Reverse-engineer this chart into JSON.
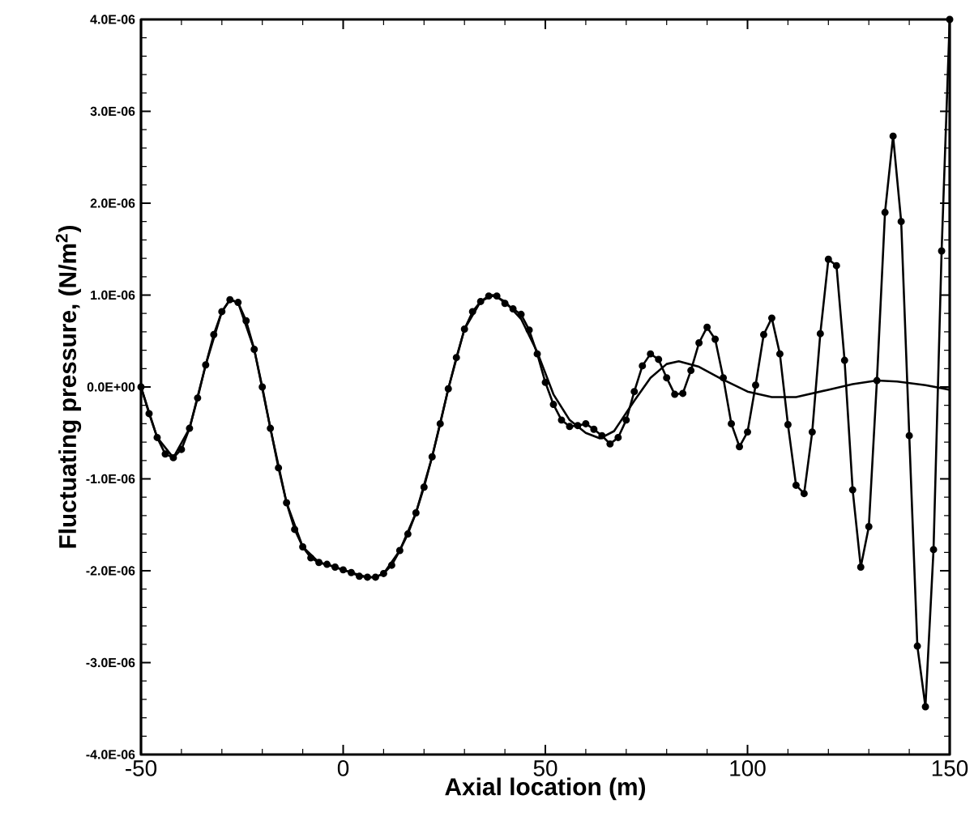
{
  "chart_data": {
    "type": "line",
    "xlabel": "Axial location (m)",
    "ylabel": "Fluctuating pressure, (N/m$^{2}$)",
    "xlim": [
      -50,
      150
    ],
    "xticks": [
      -50,
      0,
      50,
      100,
      150
    ],
    "ylim": [
      -4e-06,
      4e-06
    ],
    "yticks": [
      {
        "value": -4e-06,
        "label": "-4.0E-06"
      },
      {
        "value": -3e-06,
        "label": "-3.0E-06"
      },
      {
        "value": -2e-06,
        "label": "-2.0E-06"
      },
      {
        "value": -1e-06,
        "label": "-1.0E-06"
      },
      {
        "value": 0,
        "label": "0.0E+00"
      },
      {
        "value": 1e-06,
        "label": "1.0E-06"
      },
      {
        "value": 2e-06,
        "label": "2.0E-06"
      },
      {
        "value": 3e-06,
        "label": "3.0E-06"
      },
      {
        "value": 4e-06,
        "label": "4.0E-06"
      }
    ],
    "line_style": "solid",
    "series": [
      {
        "color": "#000000",
        "marker": "circle",
        "x": [
          -50,
          -48,
          -46,
          -44,
          -42,
          -40,
          -38,
          -36,
          -34,
          -32,
          -30,
          -28,
          -26,
          -24,
          -22,
          -20,
          -18,
          -16,
          -14,
          -12,
          -10,
          -8,
          -6,
          -4,
          -2,
          0,
          2,
          4,
          6,
          8,
          10,
          12,
          14,
          16,
          18,
          20,
          22,
          24,
          26,
          28,
          30,
          32,
          34,
          36,
          38,
          40,
          42,
          44,
          46,
          48,
          50,
          52,
          54,
          56,
          58,
          60,
          62,
          64,
          66,
          68,
          70,
          72,
          74,
          76,
          78,
          80,
          82,
          84,
          86,
          88,
          90,
          92,
          94,
          96,
          98,
          100,
          102,
          104,
          106,
          108,
          110,
          112,
          114,
          116,
          118,
          120,
          122,
          124,
          126,
          128,
          130,
          132,
          134,
          136,
          138,
          140,
          142,
          144,
          146,
          148,
          150
        ],
        "values": [
          0,
          -2.9e-07,
          -5.5e-07,
          -7.3e-07,
          -7.7e-07,
          -6.8e-07,
          -4.5e-07,
          -1.2e-07,
          2.4e-07,
          5.7e-07,
          8.2e-07,
          9.5e-07,
          9.2e-07,
          7.2e-07,
          4.1e-07,
          0,
          -4.5e-07,
          -8.8e-07,
          -1.26e-06,
          -1.55e-06,
          -1.74e-06,
          -1.86e-06,
          -1.91e-06,
          -1.93e-06,
          -1.96e-06,
          -1.99e-06,
          -2.02e-06,
          -2.06e-06,
          -2.07e-06,
          -2.07e-06,
          -2.03e-06,
          -1.94e-06,
          -1.78e-06,
          -1.6e-06,
          -1.37e-06,
          -1.09e-06,
          -7.6e-07,
          -4e-07,
          -2e-08,
          3.2e-07,
          6.3e-07,
          8.2e-07,
          9.3e-07,
          9.9e-07,
          9.9e-07,
          9.1e-07,
          8.5e-07,
          7.9e-07,
          6.2e-07,
          3.6e-07,
          5e-08,
          -1.9e-07,
          -3.6e-07,
          -4.3e-07,
          -4.2e-07,
          -4e-07,
          -4.6e-07,
          -5.3e-07,
          -6.2e-07,
          -5.5e-07,
          -3.6e-07,
          -5e-08,
          2.3e-07,
          3.6e-07,
          3e-07,
          1e-07,
          -8e-08,
          -7e-08,
          1.8e-07,
          4.8e-07,
          6.5e-07,
          5.2e-07,
          1e-07,
          -4e-07,
          -6.5e-07,
          -4.9e-07,
          2e-08,
          5.7e-07,
          7.5e-07,
          3.6e-07,
          -4.1e-07,
          -1.07e-06,
          -1.16e-06,
          -4.9e-07,
          5.8e-07,
          1.39e-06,
          1.32e-06,
          2.9e-07,
          -1.12e-06,
          -1.96e-06,
          -1.52e-06,
          7e-08,
          1.9e-06,
          2.73e-06,
          1.8e-06,
          -5.3e-07,
          -2.82e-06,
          -3.48e-06,
          -1.77e-06,
          1.48e-06,
          4e-06
        ]
      },
      {
        "color": "#000000",
        "marker": "none",
        "x": [
          -50,
          -46,
          -42,
          -38,
          -34,
          -30,
          -28,
          -26,
          -22,
          -18,
          -14,
          -10,
          -6,
          -2,
          2,
          6,
          8,
          10,
          14,
          18,
          22,
          26,
          30,
          34,
          37,
          40,
          44,
          48,
          52,
          56,
          60,
          63.5,
          67,
          72,
          76,
          80,
          83,
          88,
          93,
          100,
          106,
          112,
          120,
          126,
          132,
          137,
          144,
          150
        ],
        "values": [
          0,
          -5.5e-07,
          -7.7e-07,
          -4.5e-07,
          2.4e-07,
          8.2e-07,
          9.5e-07,
          9.2e-07,
          4.1e-07,
          -4.5e-07,
          -1.26e-06,
          -1.74e-06,
          -1.91e-06,
          -1.96e-06,
          -2.02e-06,
          -2.07e-06,
          -2.07e-06,
          -2.03e-06,
          -1.78e-06,
          -1.37e-06,
          -7.6e-07,
          -2e-08,
          6.3e-07,
          9.3e-07,
          1e-06,
          9.3e-07,
          7.4e-07,
          3.8e-07,
          -8e-08,
          -3.6e-07,
          -5e-07,
          -5.6e-07,
          -4.8e-07,
          -1.5e-07,
          1e-07,
          2.5e-07,
          2.8e-07,
          2.2e-07,
          1e-07,
          -5e-08,
          -1.1e-07,
          -1.1e-07,
          -3e-08,
          3e-08,
          7e-08,
          6e-08,
          2e-08,
          -3e-08
        ]
      }
    ]
  }
}
